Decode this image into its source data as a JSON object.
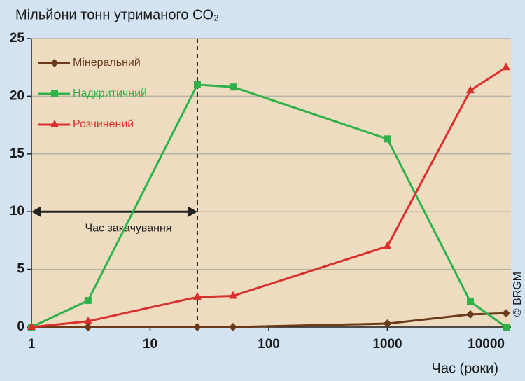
{
  "chart_data": {
    "type": "line",
    "title": "Мільйони тонн утриманого CO₂",
    "x_label": "Час (роки)",
    "credit": "© BRGM",
    "x": [
      1,
      3,
      25,
      50,
      1000,
      5000,
      10000
    ],
    "xlim": [
      1,
      11000
    ],
    "xscale": "log",
    "xticks": [
      1,
      10,
      100,
      1000,
      10000
    ],
    "ylim": [
      0,
      25
    ],
    "yticks": [
      0,
      5,
      10,
      15,
      20,
      25
    ],
    "grid": true,
    "legend": "upper left",
    "series": [
      {
        "name": "Мінеральний",
        "color": "#6b3a1a",
        "marker": "diamond",
        "values": [
          0,
          0,
          0,
          0,
          0.3,
          1.1,
          1.2
        ]
      },
      {
        "name": "Надкритичний",
        "color": "#2fb24a",
        "marker": "square",
        "values": [
          0,
          2.3,
          21,
          20.8,
          16.3,
          2.2,
          0
        ]
      },
      {
        "name": "Розчинений",
        "color": "#d8302c",
        "marker": "triangle",
        "values": [
          0,
          0.5,
          2.6,
          2.7,
          7.0,
          20.5,
          22.5
        ]
      }
    ],
    "vline": 25,
    "annotation": {
      "text": "Час закачування",
      "x": [
        1,
        25
      ],
      "y": 10
    }
  }
}
